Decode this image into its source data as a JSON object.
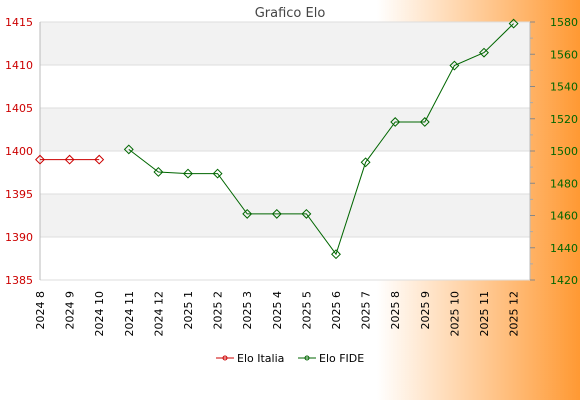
{
  "chart_data": {
    "type": "line",
    "title": "Grafico Elo",
    "categories": [
      "2024 8",
      "2024 9",
      "2024 10",
      "2024 11",
      "2024 12",
      "2025 1",
      "2025 2",
      "2025 3",
      "2025 4",
      "2025 5",
      "2025 6",
      "2025 7",
      "2025 8",
      "2025 9",
      "2025 10",
      "2025 11",
      "2025 12"
    ],
    "left_axis": {
      "range": [
        1385,
        1415
      ],
      "ticks": [
        "1385",
        "1390",
        "1395",
        "1400",
        "1405",
        "1410",
        "1415"
      ],
      "color": "#cc0000"
    },
    "right_axis": {
      "range": [
        1420,
        1580
      ],
      "ticks": [
        "1420",
        "1440",
        "1460",
        "1480",
        "1500",
        "1520",
        "1540",
        "1560",
        "1580"
      ],
      "color": "#006600"
    },
    "series": [
      {
        "name": "Elo Italia",
        "axis": "left",
        "color": "#cc0000",
        "values": [
          1399,
          1399,
          1399,
          null,
          null,
          null,
          null,
          null,
          null,
          null,
          null,
          null,
          null,
          null,
          null,
          null,
          null
        ]
      },
      {
        "name": "Elo FIDE",
        "axis": "right",
        "color": "#006600",
        "values": [
          null,
          null,
          null,
          1501,
          1487,
          1486,
          1486,
          1461,
          1461,
          1461,
          1436,
          1493,
          1518,
          1518,
          1553,
          1561,
          1579
        ]
      }
    ],
    "grid": "horizontal bands",
    "legend_placement": "bottom-center",
    "background_gradient": [
      "#ffffff",
      "#ff9933"
    ]
  }
}
